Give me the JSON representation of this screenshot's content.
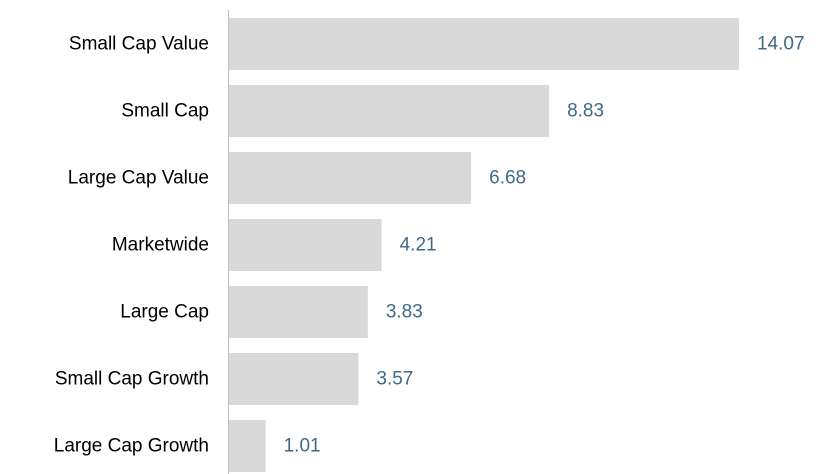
{
  "colors": {
    "bar": "#d9d9d9",
    "value_label": "#3f6a87",
    "axis": "#bfbfbf",
    "category_label": "#000000"
  },
  "chart_data": {
    "type": "bar",
    "orientation": "horizontal",
    "title": "",
    "xlabel": "",
    "ylabel": "",
    "grid": false,
    "legend": "none",
    "xlim": [
      0,
      14.07
    ],
    "categories": [
      "Small Cap Value",
      "Small Cap",
      "Large Cap Value",
      "Marketwide",
      "Large Cap",
      "Small Cap Growth",
      "Large Cap Growth"
    ],
    "values": [
      14.07,
      8.83,
      6.68,
      4.21,
      3.83,
      3.57,
      1.01
    ],
    "value_labels": [
      "14.07",
      "8.83",
      "6.68",
      "4.21",
      "3.83",
      "3.57",
      "1.01"
    ]
  }
}
